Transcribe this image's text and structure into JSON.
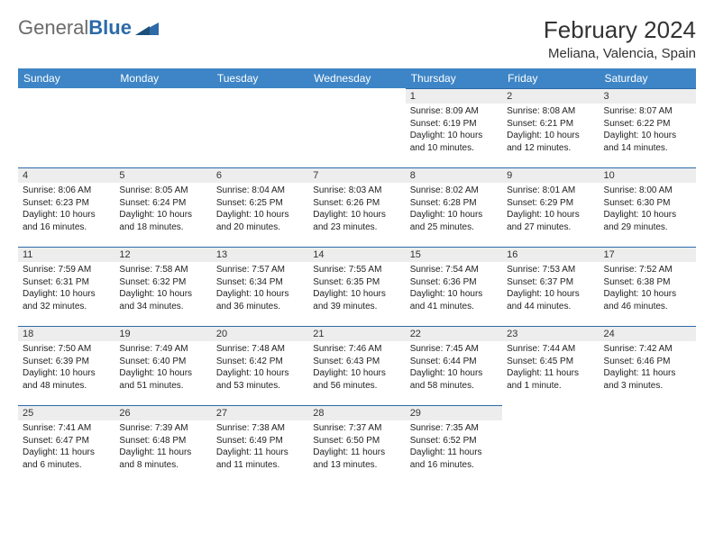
{
  "logo": {
    "part1": "General",
    "part2": "Blue"
  },
  "title": {
    "month": "February 2024",
    "location": "Meliana, Valencia, Spain"
  },
  "header_bg": "#3d85c6",
  "daynum_bg": "#ededed",
  "border_color": "#2c6aa8",
  "weekdays": [
    "Sunday",
    "Monday",
    "Tuesday",
    "Wednesday",
    "Thursday",
    "Friday",
    "Saturday"
  ],
  "first_weekday_index": 4,
  "days": [
    {
      "n": "1",
      "sunrise": "8:09 AM",
      "sunset": "6:19 PM",
      "daylight": "10 hours and 10 minutes."
    },
    {
      "n": "2",
      "sunrise": "8:08 AM",
      "sunset": "6:21 PM",
      "daylight": "10 hours and 12 minutes."
    },
    {
      "n": "3",
      "sunrise": "8:07 AM",
      "sunset": "6:22 PM",
      "daylight": "10 hours and 14 minutes."
    },
    {
      "n": "4",
      "sunrise": "8:06 AM",
      "sunset": "6:23 PM",
      "daylight": "10 hours and 16 minutes."
    },
    {
      "n": "5",
      "sunrise": "8:05 AM",
      "sunset": "6:24 PM",
      "daylight": "10 hours and 18 minutes."
    },
    {
      "n": "6",
      "sunrise": "8:04 AM",
      "sunset": "6:25 PM",
      "daylight": "10 hours and 20 minutes."
    },
    {
      "n": "7",
      "sunrise": "8:03 AM",
      "sunset": "6:26 PM",
      "daylight": "10 hours and 23 minutes."
    },
    {
      "n": "8",
      "sunrise": "8:02 AM",
      "sunset": "6:28 PM",
      "daylight": "10 hours and 25 minutes."
    },
    {
      "n": "9",
      "sunrise": "8:01 AM",
      "sunset": "6:29 PM",
      "daylight": "10 hours and 27 minutes."
    },
    {
      "n": "10",
      "sunrise": "8:00 AM",
      "sunset": "6:30 PM",
      "daylight": "10 hours and 29 minutes."
    },
    {
      "n": "11",
      "sunrise": "7:59 AM",
      "sunset": "6:31 PM",
      "daylight": "10 hours and 32 minutes."
    },
    {
      "n": "12",
      "sunrise": "7:58 AM",
      "sunset": "6:32 PM",
      "daylight": "10 hours and 34 minutes."
    },
    {
      "n": "13",
      "sunrise": "7:57 AM",
      "sunset": "6:34 PM",
      "daylight": "10 hours and 36 minutes."
    },
    {
      "n": "14",
      "sunrise": "7:55 AM",
      "sunset": "6:35 PM",
      "daylight": "10 hours and 39 minutes."
    },
    {
      "n": "15",
      "sunrise": "7:54 AM",
      "sunset": "6:36 PM",
      "daylight": "10 hours and 41 minutes."
    },
    {
      "n": "16",
      "sunrise": "7:53 AM",
      "sunset": "6:37 PM",
      "daylight": "10 hours and 44 minutes."
    },
    {
      "n": "17",
      "sunrise": "7:52 AM",
      "sunset": "6:38 PM",
      "daylight": "10 hours and 46 minutes."
    },
    {
      "n": "18",
      "sunrise": "7:50 AM",
      "sunset": "6:39 PM",
      "daylight": "10 hours and 48 minutes."
    },
    {
      "n": "19",
      "sunrise": "7:49 AM",
      "sunset": "6:40 PM",
      "daylight": "10 hours and 51 minutes."
    },
    {
      "n": "20",
      "sunrise": "7:48 AM",
      "sunset": "6:42 PM",
      "daylight": "10 hours and 53 minutes."
    },
    {
      "n": "21",
      "sunrise": "7:46 AM",
      "sunset": "6:43 PM",
      "daylight": "10 hours and 56 minutes."
    },
    {
      "n": "22",
      "sunrise": "7:45 AM",
      "sunset": "6:44 PM",
      "daylight": "10 hours and 58 minutes."
    },
    {
      "n": "23",
      "sunrise": "7:44 AM",
      "sunset": "6:45 PM",
      "daylight": "11 hours and 1 minute."
    },
    {
      "n": "24",
      "sunrise": "7:42 AM",
      "sunset": "6:46 PM",
      "daylight": "11 hours and 3 minutes."
    },
    {
      "n": "25",
      "sunrise": "7:41 AM",
      "sunset": "6:47 PM",
      "daylight": "11 hours and 6 minutes."
    },
    {
      "n": "26",
      "sunrise": "7:39 AM",
      "sunset": "6:48 PM",
      "daylight": "11 hours and 8 minutes."
    },
    {
      "n": "27",
      "sunrise": "7:38 AM",
      "sunset": "6:49 PM",
      "daylight": "11 hours and 11 minutes."
    },
    {
      "n": "28",
      "sunrise": "7:37 AM",
      "sunset": "6:50 PM",
      "daylight": "11 hours and 13 minutes."
    },
    {
      "n": "29",
      "sunrise": "7:35 AM",
      "sunset": "6:52 PM",
      "daylight": "11 hours and 16 minutes."
    }
  ],
  "labels": {
    "sunrise": "Sunrise:",
    "sunset": "Sunset:",
    "daylight": "Daylight:"
  }
}
